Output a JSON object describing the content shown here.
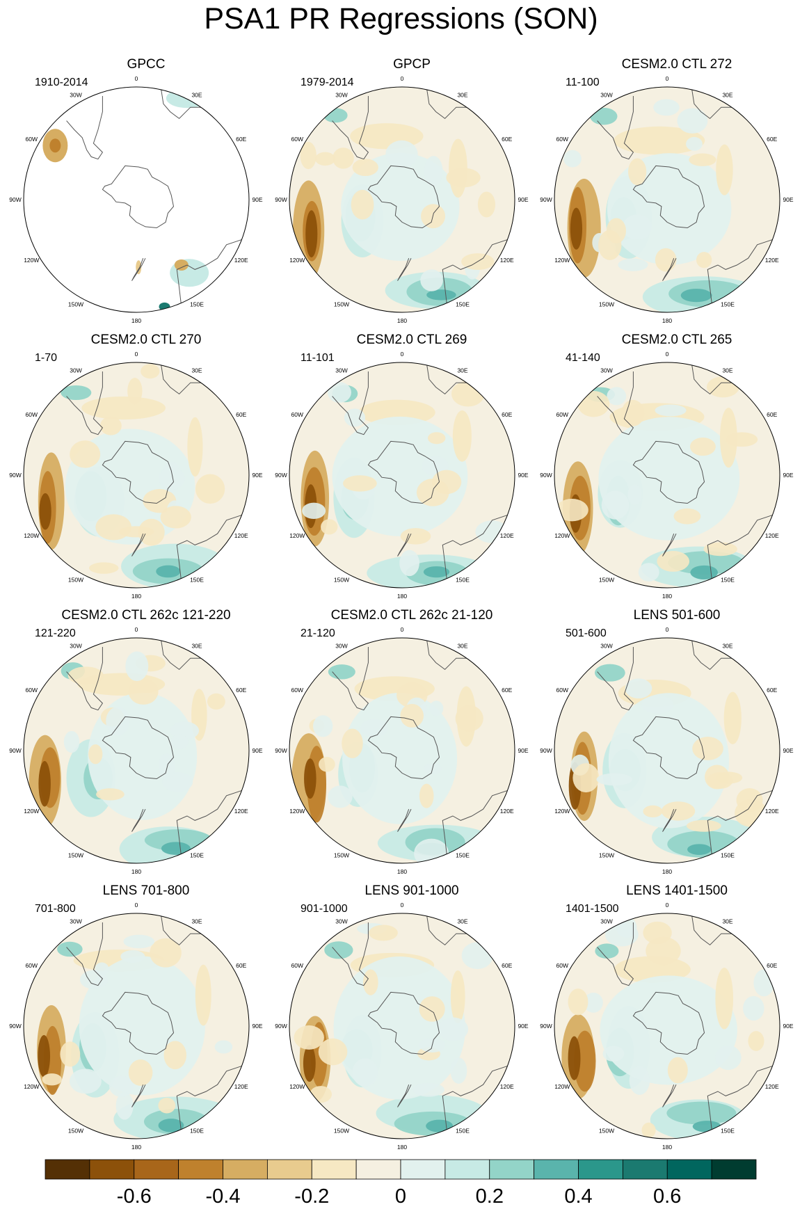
{
  "title": "PSA1 PR Regressions (SON)",
  "panels": [
    {
      "title": "GPCC",
      "period": "1910-2014"
    },
    {
      "title": "GPCP",
      "period": "1979-2014"
    },
    {
      "title": "CESM2.0 CTL 272",
      "period": "11-100"
    },
    {
      "title": "CESM2.0 CTL 270",
      "period": "1-70"
    },
    {
      "title": "CESM2.0 CTL 269",
      "period": "11-101"
    },
    {
      "title": "CESM2.0 CTL 265",
      "period": "41-140"
    },
    {
      "title": "CESM2.0 CTL 262c 121-220",
      "period": "121-220"
    },
    {
      "title": "CESM2.0 CTL 262c 21-120",
      "period": "21-120"
    },
    {
      "title": "LENS 501-600",
      "period": "501-600"
    },
    {
      "title": "LENS 701-800",
      "period": "701-800"
    },
    {
      "title": "LENS 901-1000",
      "period": "901-1000"
    },
    {
      "title": "LENS 1401-1500",
      "period": "1401-1500"
    }
  ],
  "longitude_labels": [
    "0",
    "30E",
    "60E",
    "90E",
    "120E",
    "150E",
    "180",
    "150W",
    "120W",
    "90W",
    "60W",
    "30W"
  ],
  "colorbar": {
    "colors": [
      "#543005",
      "#8c510a",
      "#a8661a",
      "#bf812d",
      "#d6ad62",
      "#e8cb8e",
      "#f6e8c3",
      "#f5f0e1",
      "#e2f1ee",
      "#c7eae5",
      "#93d4c8",
      "#5ab4ac",
      "#2b978b",
      "#1b7a70",
      "#01665e",
      "#003c30"
    ],
    "tick_labels": [
      "-0.6",
      "-0.4",
      "-0.2",
      "0",
      "0.2",
      "0.4",
      "0.6"
    ],
    "tick_values": [
      -0.6,
      -0.4,
      -0.2,
      0,
      0.2,
      0.4,
      0.6
    ],
    "range": [
      -0.8,
      0.8
    ]
  }
}
